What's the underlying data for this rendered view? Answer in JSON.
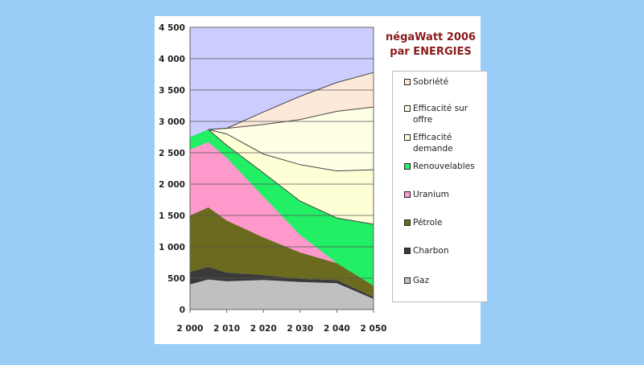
{
  "chart_data": {
    "type": "area",
    "stacked": true,
    "title": [
      "négaWatt 2006",
      "par ENERGIES"
    ],
    "xlabel": "",
    "ylabel": "",
    "x": [
      2000,
      2005,
      2010,
      2020,
      2030,
      2040,
      2050
    ],
    "x_ticks": [
      2000,
      2010,
      2020,
      2030,
      2040,
      2050
    ],
    "x_tick_labels": [
      "2 000",
      "2 010",
      "2 020",
      "2 030",
      "2 040",
      "2 050"
    ],
    "xlim": [
      2000,
      2050
    ],
    "ylim": [
      0,
      4500
    ],
    "y_ticks": [
      0,
      500,
      1000,
      1500,
      2000,
      2500,
      3000,
      3500,
      4000,
      4500
    ],
    "y_tick_labels": [
      "0",
      "500",
      "1 000",
      "1 500",
      "2 000",
      "2 500",
      "3 000",
      "3 500",
      "4 000",
      "4 500"
    ],
    "grid": "horizontal",
    "legend_position": "right",
    "series": [
      {
        "name": "Gaz",
        "color": "#c0c0c0",
        "values": [
          400,
          480,
          450,
          470,
          440,
          420,
          170
        ]
      },
      {
        "name": "Charbon",
        "color": "#3a3a3a",
        "values": [
          200,
          200,
          140,
          80,
          50,
          50,
          30
        ]
      },
      {
        "name": "Pétrole",
        "color": "#6b6b1f",
        "values": [
          900,
          950,
          830,
          600,
          420,
          270,
          180
        ]
      },
      {
        "name": "Uranium",
        "color": "#ff99cc",
        "values": [
          1050,
          1040,
          1000,
          650,
          280,
          0,
          0
        ]
      },
      {
        "name": "Renouvelables",
        "color": "#22ee66",
        "values": [
          200,
          200,
          200,
          380,
          540,
          720,
          980
        ]
      },
      {
        "name": "Efficacité demande",
        "color": "#ffffd6",
        "values": [
          0,
          0,
          180,
          300,
          580,
          750,
          870
        ]
      },
      {
        "name": "Efficacité sur offre",
        "color": "#ffffe6",
        "values": [
          0,
          0,
          90,
          470,
          720,
          950,
          1000
        ]
      },
      {
        "name": "Sobriété",
        "color": "#fde9d9",
        "values": [
          0,
          0,
          0,
          200,
          370,
          460,
          550
        ]
      }
    ],
    "plot_background": "#ccccff"
  },
  "legend": {
    "items": [
      {
        "label": "Sobriété",
        "color": "#fde9d9"
      },
      {
        "label": "Efficacité sur offre",
        "color": "#ffffe6"
      },
      {
        "label": "Efficacité demande",
        "color": "#ffffd6"
      },
      {
        "label": "Renouvelables",
        "color": "#22ee66"
      },
      {
        "label": "Uranium",
        "color": "#ff99cc"
      },
      {
        "label": "Pétrole",
        "color": "#6b6b1f"
      },
      {
        "label": "Charbon",
        "color": "#3a3a3a"
      },
      {
        "label": "Gaz",
        "color": "#c0c0c0"
      }
    ]
  }
}
